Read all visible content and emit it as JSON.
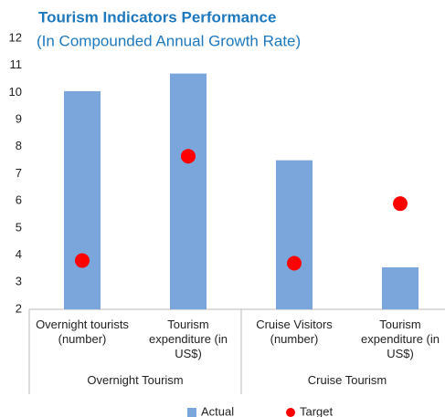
{
  "chart_data": {
    "type": "bar",
    "title": "Tourism Indicators Performance",
    "subtitle": "(In Compounded Annual Growth Rate)",
    "groups": [
      {
        "name": "Overnight Tourism",
        "categories": [
          "Overnight tourists (number)",
          "Tourism expenditure (in US$)"
        ]
      },
      {
        "name": "Cruise Tourism",
        "categories": [
          "Cruise Visitors (number)",
          "Tourism expenditure (in US$)"
        ]
      }
    ],
    "series": [
      {
        "name": "Actual",
        "type": "bar",
        "color": "#7aa6dc",
        "values": [
          10.05,
          10.7,
          7.5,
          3.55
        ]
      },
      {
        "name": "Target",
        "type": "scatter",
        "color": "#ff0000",
        "values": [
          3.8,
          7.65,
          3.7,
          5.9
        ]
      }
    ],
    "ylim": [
      2,
      12
    ],
    "yticks": [
      2,
      3,
      4,
      5,
      6,
      7,
      8,
      9,
      10,
      11,
      12
    ],
    "grid": false,
    "legend": "bottom"
  }
}
